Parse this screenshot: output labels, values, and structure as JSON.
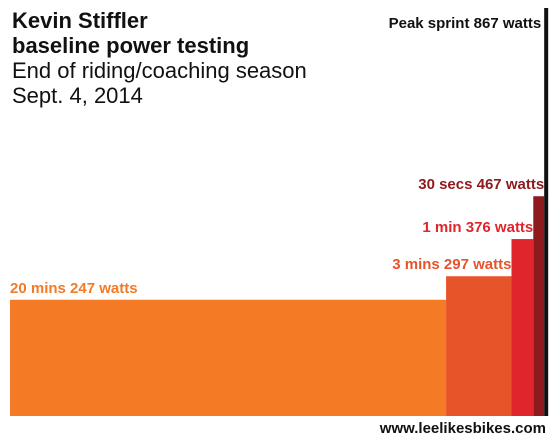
{
  "chart_data": {
    "type": "bar",
    "title_lines": [
      "Kevin Stiffler",
      "baseline power testing"
    ],
    "subtitle_lines": [
      "End of riding/coaching season",
      "Sept. 4, 2014"
    ],
    "footer": "www.leelikesbikes.com",
    "xlabel": "",
    "ylabel": "",
    "bars": [
      {
        "duration_seconds": 1200,
        "watts": 247,
        "label": "20 mins 247 watts",
        "color": "#f47a25"
      },
      {
        "duration_seconds": 180,
        "watts": 297,
        "label": "3 mins 297 watts",
        "color": "#e8542a"
      },
      {
        "duration_seconds": 60,
        "watts": 376,
        "label": "1 min 376 watts",
        "color": "#e0252c"
      },
      {
        "duration_seconds": 30,
        "watts": 467,
        "label": "30 secs 467 watts",
        "color": "#8e1a1d"
      },
      {
        "duration_seconds": 5,
        "watts": 867,
        "label": "Peak sprint 867 watts",
        "color": "#111111"
      }
    ]
  }
}
